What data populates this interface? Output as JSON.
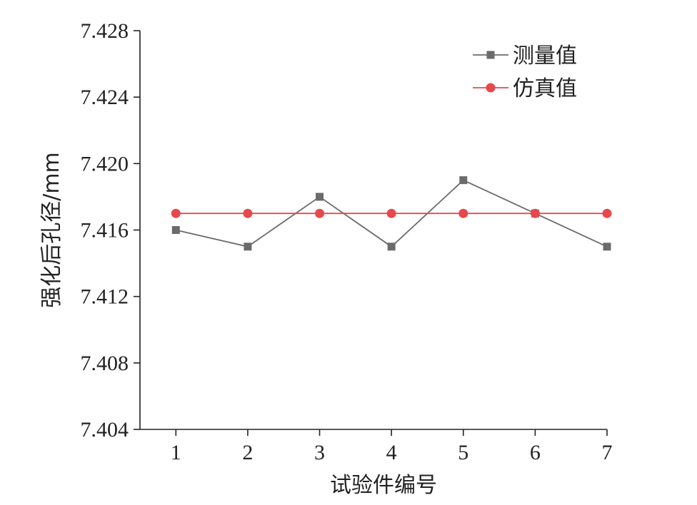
{
  "chart_data": {
    "type": "line",
    "title": "",
    "xlabel": "试验件编号",
    "ylabel": "强化后孔径/mm",
    "x": [
      1,
      2,
      3,
      4,
      5,
      6,
      7
    ],
    "xlim": [
      0.5,
      7.0
    ],
    "ylim": [
      7.404,
      7.428
    ],
    "yticks": [
      "7.404",
      "7.408",
      "7.412",
      "7.416",
      "7.420",
      "7.424",
      "7.428"
    ],
    "xticks": [
      "1",
      "2",
      "3",
      "4",
      "5",
      "6",
      "7"
    ],
    "grid": false,
    "legend_position": "top-right",
    "series": [
      {
        "name": "测量值",
        "values": [
          7.416,
          7.415,
          7.418,
          7.415,
          7.419,
          7.417,
          7.415
        ],
        "color": "#6b6b6b",
        "marker": "square"
      },
      {
        "name": "仿真值",
        "values": [
          7.417,
          7.417,
          7.417,
          7.417,
          7.417,
          7.417,
          7.417
        ],
        "color": "#e8474c",
        "marker": "circle"
      }
    ]
  }
}
